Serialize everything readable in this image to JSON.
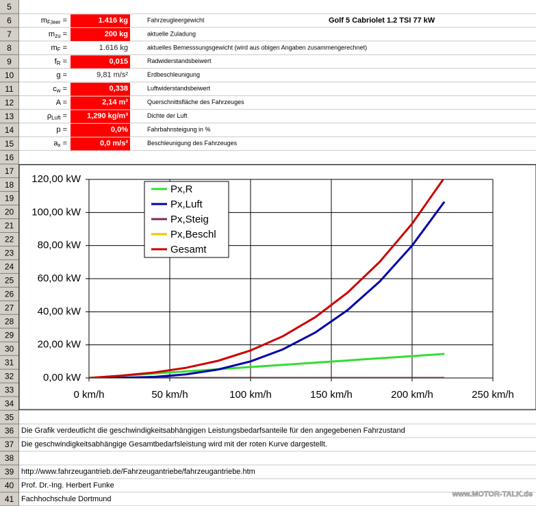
{
  "sheet": {
    "row_numbers": [
      5,
      6,
      7,
      8,
      9,
      10,
      11,
      12,
      13,
      14,
      15,
      16,
      17,
      18,
      19,
      20,
      21,
      22,
      23,
      24,
      25,
      26,
      27,
      28,
      29,
      30,
      31,
      32,
      33,
      34,
      35,
      36,
      37,
      38,
      39,
      40,
      41
    ],
    "vehicle": "Golf 5 Cabriolet 1.2 TSI 77 kW",
    "params": [
      {
        "row": 6,
        "label": {
          "main": "m",
          "sub": "F,leer",
          "tail": " ="
        },
        "value": "1.416 kg",
        "input": true,
        "desc": "Fahrzeugleergewicht"
      },
      {
        "row": 7,
        "label": {
          "main": "m",
          "sub": "zu",
          "tail": " ="
        },
        "value": "200 kg",
        "input": true,
        "desc": "aktuelle Zuladung"
      },
      {
        "row": 8,
        "label": {
          "main": "m",
          "sub": "F",
          "tail": " ="
        },
        "value": "1.616 kg",
        "input": false,
        "desc": "aktuelles Bemesssungsgewicht (wird aus obigen Angaben zusammengerechnet)"
      },
      {
        "row": 9,
        "label": {
          "main": "f",
          "sub": "R",
          "tail": " ="
        },
        "value": "0,015",
        "input": true,
        "desc": "Radwiderstandsbeiwert"
      },
      {
        "row": 10,
        "label": {
          "main": "g",
          "sub": "",
          "tail": " ="
        },
        "value": "9,81 m/s²",
        "input": false,
        "desc": "Erdbeschleunigung"
      },
      {
        "row": 11,
        "label": {
          "main": "c",
          "sub": "w",
          "tail": " ="
        },
        "value": "0,338",
        "input": true,
        "desc": "Luftwiderstandsbeiwert"
      },
      {
        "row": 12,
        "label": {
          "main": "A",
          "sub": "",
          "tail": " ="
        },
        "value": "2,14 m²",
        "input": true,
        "desc": "Querschnittsfläche des Fahrzeuges"
      },
      {
        "row": 13,
        "label": {
          "main": "ρ",
          "sub": "Luft",
          "tail": " ="
        },
        "value": "1,290 kg/m³",
        "input": true,
        "desc": "Dichte der Luft"
      },
      {
        "row": 14,
        "label": {
          "main": "p",
          "sub": "",
          "tail": " ="
        },
        "value": "0,0%",
        "input": true,
        "desc": "Fahrbahnsteigung in %"
      },
      {
        "row": 15,
        "label": {
          "main": "a",
          "sub": "x",
          "tail": " ="
        },
        "value": "0,0 m/s²",
        "input": true,
        "desc": "Beschleunigung des Fahrzeuges"
      }
    ],
    "notes": [
      {
        "row": 36,
        "text": "Die Grafik verdeutlicht die geschwindigkeitsabhängigen Leistungsbedarfsanteile für den angegebenen Fahrzustand"
      },
      {
        "row": 37,
        "text": "Die geschwindigkeitsabhängige Gesamtbedarfsleistung wird mit der roten Kurve dargestellt."
      },
      {
        "row": 39,
        "text": "http://www.fahrzeugantrieb.de/Fahrzeugantriebe/fahrzeugantriebe.htm"
      },
      {
        "row": 40,
        "text": "Prof. Dr.-Ing. Herbert Funke"
      },
      {
        "row": 41,
        "text": "Fachhochschule Dortmund"
      }
    ],
    "watermark": "www.MOTOR-TALK.de"
  },
  "chart_data": {
    "type": "line",
    "x": [
      0,
      20,
      40,
      60,
      80,
      100,
      120,
      140,
      160,
      180,
      200,
      220
    ],
    "series": [
      {
        "name": "Px,R",
        "color": "#33dd33",
        "values": [
          0,
          1.32,
          2.64,
          3.96,
          5.28,
          6.61,
          7.93,
          9.25,
          10.57,
          11.89,
          13.21,
          14.53
        ]
      },
      {
        "name": "Px,Luft",
        "color": "#0000aa",
        "values": [
          0,
          0.08,
          0.64,
          2.16,
          5.12,
          10.0,
          17.28,
          27.44,
          40.96,
          58.33,
          80.0,
          106.5
        ]
      },
      {
        "name": "Px,Steig",
        "color": "#7b2c5a",
        "values": [
          0,
          0,
          0,
          0,
          0,
          0,
          0,
          0,
          0,
          0,
          0,
          0
        ]
      },
      {
        "name": "Px,Beschl",
        "color": "#f0c000",
        "values": [
          0,
          0,
          0,
          0,
          0,
          0,
          0,
          0,
          0,
          0,
          0,
          0
        ]
      },
      {
        "name": "Gesamt",
        "color": "#cc0000",
        "values": [
          0,
          1.4,
          3.28,
          6.12,
          10.4,
          16.61,
          25.21,
          36.69,
          51.53,
          70.22,
          93.21,
          121.03
        ]
      }
    ],
    "xlim": [
      0,
      250
    ],
    "xticks": [
      {
        "value": 0,
        "label": "0 km/h"
      },
      {
        "value": 50,
        "label": "50 km/h"
      },
      {
        "value": 100,
        "label": "100 km/h"
      },
      {
        "value": 150,
        "label": "150 km/h"
      },
      {
        "value": 200,
        "label": "200 km/h"
      },
      {
        "value": 250,
        "label": "250 km/h"
      }
    ],
    "ylim": [
      0,
      120
    ],
    "yticks": [
      {
        "value": 0,
        "label": "0,00 kW"
      },
      {
        "value": 20,
        "label": "20,00 kW"
      },
      {
        "value": 40,
        "label": "40,00 kW"
      },
      {
        "value": 60,
        "label": "60,00 kW"
      },
      {
        "value": 80,
        "label": "80,00 kW"
      },
      {
        "value": 100,
        "label": "100,00 kW"
      },
      {
        "value": 120,
        "label": "120,00 kW"
      }
    ],
    "grid": true,
    "legend": "top-left"
  }
}
